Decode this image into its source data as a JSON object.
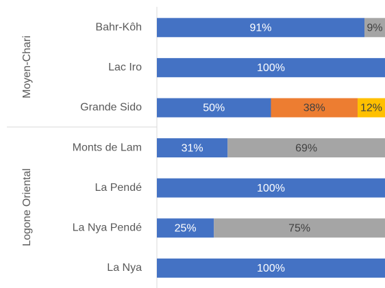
{
  "chart_data": {
    "type": "stacked-bar-horizontal",
    "categories": [
      "Bahr-Kôh",
      "Lac Iro",
      "Grande Sido",
      "Monts de Lam",
      "La Pendé",
      "La Nya Pendé",
      "La Nya"
    ],
    "groups": [
      {
        "label": "Moyen-Chari",
        "size": 3
      },
      {
        "label": "Logone Oriental",
        "size": 4
      }
    ],
    "series": [
      {
        "color": "#4472c4",
        "values": [
          91,
          100,
          50,
          31,
          100,
          25,
          100
        ],
        "value_labels": [
          "91%",
          "100%",
          "50%",
          "31%",
          "100%",
          "25%",
          "100%"
        ]
      },
      {
        "color": "#ed7d31",
        "values": [
          null,
          null,
          38,
          null,
          null,
          null,
          null
        ],
        "value_labels": [
          null,
          null,
          "38%",
          null,
          null,
          null,
          null
        ]
      },
      {
        "color": "#ffc000",
        "values": [
          null,
          null,
          12,
          null,
          null,
          null,
          null
        ],
        "value_labels": [
          null,
          null,
          "12%",
          null,
          null,
          null,
          null
        ]
      },
      {
        "color": "#a5a5a5",
        "values": [
          9,
          null,
          null,
          69,
          null,
          75,
          null
        ],
        "value_labels": [
          "9%",
          null,
          null,
          "69%",
          null,
          "75%",
          null
        ]
      }
    ],
    "xlim": [
      0,
      100
    ]
  }
}
